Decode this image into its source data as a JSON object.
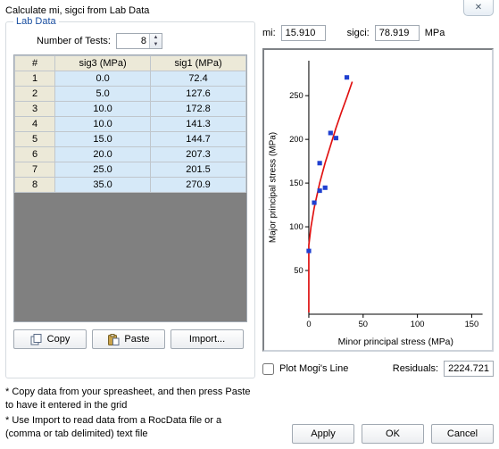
{
  "window": {
    "title": "Calculate mi, sigci from Lab Data"
  },
  "labdata": {
    "legend": "Lab Data",
    "num_tests_label": "Number of Tests:",
    "num_tests_value": "8",
    "columns": {
      "idx": "#",
      "sig3": "sig3 (MPa)",
      "sig1": "sig1 (MPa)"
    },
    "rows": [
      {
        "n": "1",
        "sig3": "0.0",
        "sig1": "72.4"
      },
      {
        "n": "2",
        "sig3": "5.0",
        "sig1": "127.6"
      },
      {
        "n": "3",
        "sig3": "10.0",
        "sig1": "172.8"
      },
      {
        "n": "4",
        "sig3": "10.0",
        "sig1": "141.3"
      },
      {
        "n": "5",
        "sig3": "15.0",
        "sig1": "144.7"
      },
      {
        "n": "6",
        "sig3": "20.0",
        "sig1": "207.3"
      },
      {
        "n": "7",
        "sig3": "25.0",
        "sig1": "201.5"
      },
      {
        "n": "8",
        "sig3": "35.0",
        "sig1": "270.9"
      }
    ],
    "buttons": {
      "copy": "Copy",
      "paste": "Paste",
      "import": "Import..."
    }
  },
  "help": {
    "line1": "* Copy data from your spreasheet, and then press Paste to have it entered in the grid",
    "line2": "* Use Import to read data from a RocData file or a (comma or tab delimited) text file"
  },
  "results": {
    "mi_label": "mi:",
    "mi_value": "15.910",
    "sigci_label": "sigci:",
    "sigci_value": "78.919",
    "sigci_unit": "MPa",
    "mogi_label": "Plot Mogi's Line",
    "residuals_label": "Residuals:",
    "residuals_value": "2224.721"
  },
  "chart": {
    "type": "scatter+line",
    "xlabel": "Minor principal stress (MPa)",
    "ylabel": "Major principal stress (MPa)",
    "label_fontsize": 10,
    "tick_fontsize": 9,
    "background_color": "#ffffff",
    "axis_color": "#000000",
    "xlim": [
      0,
      160
    ],
    "ylim": [
      0,
      290
    ],
    "xticks": [
      0,
      50,
      100,
      150
    ],
    "yticks": [
      50,
      100,
      150,
      200,
      250
    ],
    "points": {
      "color": "#2040d0",
      "marker": "square",
      "size": 5,
      "data": [
        {
          "x": 0,
          "y": 72.4
        },
        {
          "x": 5,
          "y": 127.6
        },
        {
          "x": 10,
          "y": 172.8
        },
        {
          "x": 10,
          "y": 141.3
        },
        {
          "x": 15,
          "y": 144.7
        },
        {
          "x": 20,
          "y": 207.3
        },
        {
          "x": 25,
          "y": 201.5
        },
        {
          "x": 35,
          "y": 270.9
        }
      ]
    },
    "curve": {
      "color": "#e01010",
      "width": 1.6,
      "data": [
        {
          "x": 0,
          "y": 2
        },
        {
          "x": 0,
          "y": 78.9
        },
        {
          "x": 2,
          "y": 100
        },
        {
          "x": 5,
          "y": 122
        },
        {
          "x": 10,
          "y": 150
        },
        {
          "x": 15,
          "y": 173
        },
        {
          "x": 20,
          "y": 193
        },
        {
          "x": 25,
          "y": 213
        },
        {
          "x": 30,
          "y": 231
        },
        {
          "x": 35,
          "y": 248
        },
        {
          "x": 40,
          "y": 266
        }
      ]
    }
  },
  "dialog_buttons": {
    "apply": "Apply",
    "ok": "OK",
    "cancel": "Cancel"
  }
}
